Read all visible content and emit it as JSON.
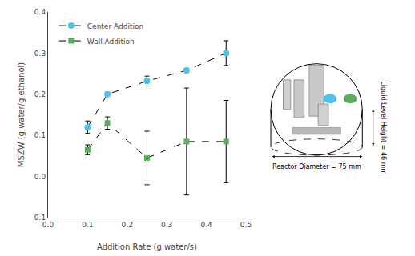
{
  "chart_data": {
    "type": "line",
    "x": [
      0.1,
      0.15,
      0.25,
      0.35,
      0.45
    ],
    "series": [
      {
        "name": "Center Addition",
        "color": "#4DC3E8",
        "marker": "circle",
        "line_style": "dashed",
        "values": [
          0.12,
          0.2,
          0.232,
          0.258,
          0.3
        ],
        "yerr": [
          0.015,
          0.005,
          0.012,
          0.005,
          0.03
        ]
      },
      {
        "name": "Wall Addition",
        "color": "#5BAD5B",
        "marker": "square",
        "line_style": "dashed",
        "values": [
          0.065,
          0.13,
          0.045,
          0.085,
          0.085
        ],
        "yerr": [
          0.012,
          0.015,
          0.065,
          0.13,
          0.1
        ]
      }
    ],
    "xlabel": "Addition Rate (g water/s)",
    "ylabel": "MSZW (g water/g ethanol)",
    "xlim": [
      0.0,
      0.5
    ],
    "ylim": [
      -0.1,
      0.4
    ],
    "xticks": [
      {
        "value": 0.0,
        "label": "0.0"
      },
      0.1,
      0.2,
      0.3,
      0.4,
      0.5
    ],
    "yticks": [
      -0.1,
      {
        "value": 0.0,
        "label": "0.0"
      },
      0.1,
      0.2,
      0.3,
      0.4
    ],
    "grid": false,
    "legend": "upper left",
    "annotations": [
      "Reactor Diameter = 75 mm",
      "Liquid Level Height = 46 mm"
    ]
  }
}
